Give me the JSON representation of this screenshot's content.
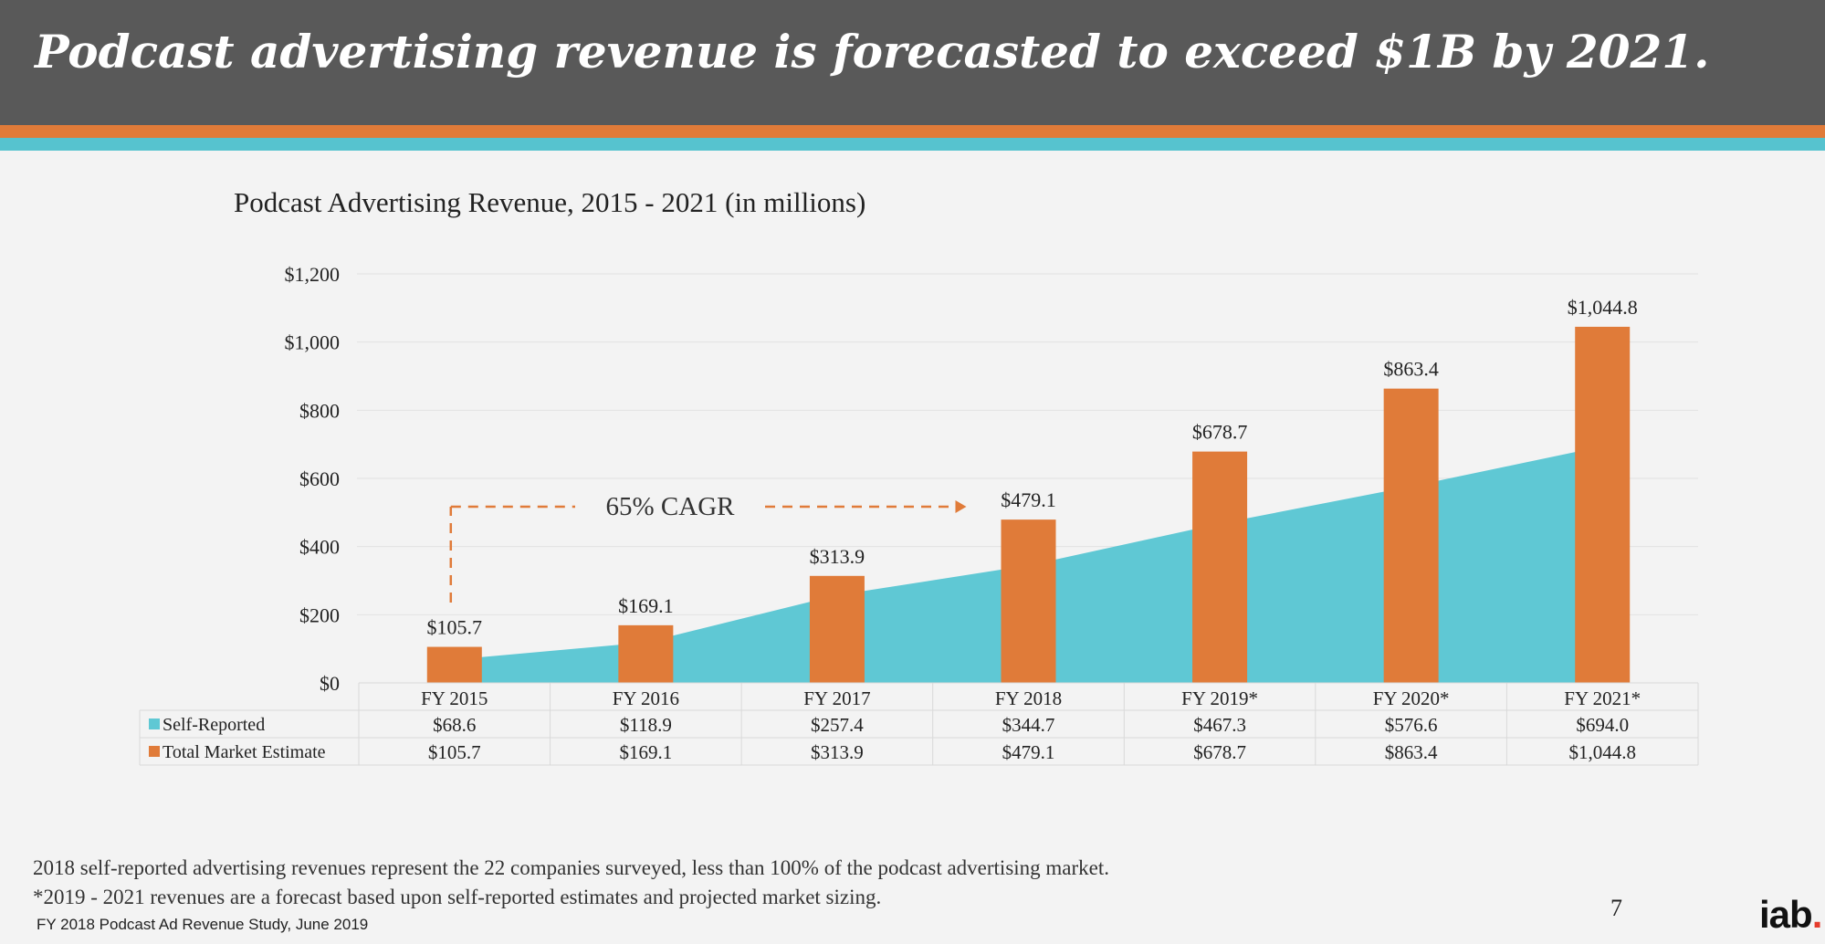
{
  "header": {
    "title": "Podcast advertising revenue is forecasted to exceed $1B by 2021."
  },
  "colors": {
    "self_reported": "#5fc8d4",
    "total_market": "#e07b39",
    "header_bg": "#595959"
  },
  "chart_data": {
    "type": "bar",
    "title": "Podcast Advertising Revenue, 2015 - 2021 (in millions)",
    "categories": [
      "FY 2015",
      "FY 2016",
      "FY 2017",
      "FY 2018",
      "FY 2019*",
      "FY 2020*",
      "FY 2021*"
    ],
    "series": [
      {
        "name": "Self-Reported",
        "chart_type": "area",
        "values": [
          68.6,
          118.9,
          257.4,
          344.7,
          467.3,
          576.6,
          694.0
        ],
        "labels": [
          "$68.6",
          "$118.9",
          "$257.4",
          "$344.7",
          "$467.3",
          "$576.6",
          "$694.0"
        ]
      },
      {
        "name": "Total Market Estimate",
        "chart_type": "bar",
        "values": [
          105.7,
          169.1,
          313.9,
          479.1,
          678.7,
          863.4,
          1044.8
        ],
        "labels": [
          "$105.7",
          "$169.1",
          "$313.9",
          "$479.1",
          "$678.7",
          "$863.4",
          "$1,044.8"
        ]
      }
    ],
    "ylim": [
      0,
      1200
    ],
    "yticks": [
      0,
      200,
      400,
      600,
      800,
      1000,
      1200
    ],
    "ytick_labels": [
      "$0",
      "$200",
      "$400",
      "$600",
      "$800",
      "$1,000",
      "$1,200"
    ],
    "grid": true,
    "annotation": {
      "text": "65% CAGR",
      "from_category": "FY 2015",
      "to_category": "FY 2018"
    }
  },
  "footer": {
    "note1": "2018 self-reported advertising revenues represent the 22 companies surveyed, less than 100% of the podcast advertising market.",
    "note2": "*2019 - 2021 revenues are a forecast based upon self-reported estimates and projected market sizing.",
    "source": "FY 2018 Podcast Ad Revenue Study, June 2019",
    "page_number": "7",
    "logo_text": "iab",
    "logo_dot": "."
  }
}
